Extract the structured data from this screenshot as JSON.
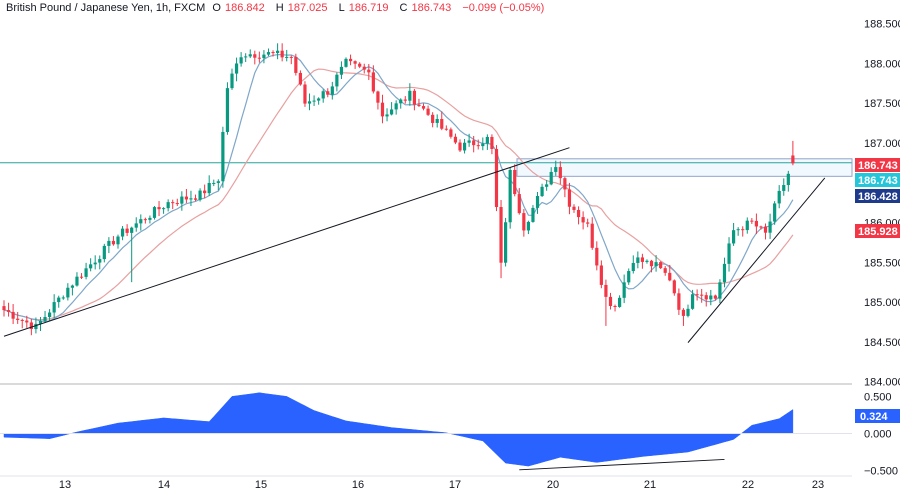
{
  "header": {
    "symbol": "British Pound / Japanese Yen, 1h, FXCM",
    "open_label": "O",
    "open": "186.842",
    "high_label": "H",
    "high": "187.025",
    "low_label": "L",
    "low": "186.719",
    "close_label": "C",
    "close": "186.743",
    "change": "−0.099 (−0.05%)"
  },
  "colors": {
    "up": "#089981",
    "down": "#F23645",
    "ma_fast": "#7FA7C9",
    "ma_slow": "#E8A0A0",
    "level": "#26A69A",
    "oscillator": "#2962FF",
    "axis_line": "#B2B5BE"
  },
  "chart_data": [
    {
      "type": "candlestick",
      "x_ticks": [
        "13",
        "14",
        "15",
        "16",
        "17",
        "20",
        "21",
        "22",
        "23"
      ],
      "y_ticks": [
        "188.500",
        "188.000",
        "187.500",
        "187.000",
        "186.000",
        "185.500",
        "185.000",
        "184.500",
        "184.000"
      ],
      "ylim": [
        183.97,
        188.62
      ],
      "price_badges": [
        {
          "value": "186.743",
          "color": "#F23645"
        },
        {
          "value": "186.743",
          "color": "#26C6DA"
        },
        {
          "value": "186.428",
          "color": "#1E3A8A"
        },
        {
          "value": "185.928",
          "color": "#F23645"
        }
      ],
      "horizontal_levels": [
        186.75,
        186.58
      ],
      "trendlines": [
        {
          "from": {
            "bar": 0,
            "price": 184.57
          },
          "to": {
            "bar": 124,
            "price": 186.94
          }
        },
        {
          "from": {
            "bar": 150,
            "price": 184.49
          },
          "to": {
            "bar": 180,
            "price": 186.56
          }
        }
      ],
      "anchors": [
        {
          "bar": 0,
          "price": 184.9
        },
        {
          "bar": 7,
          "price": 184.68
        },
        {
          "bar": 14,
          "price": 185.18
        },
        {
          "bar": 25,
          "price": 185.83
        },
        {
          "bar": 36,
          "price": 186.25
        },
        {
          "bar": 43,
          "price": 186.35
        },
        {
          "bar": 47,
          "price": 186.55
        },
        {
          "bar": 49,
          "price": 187.7
        },
        {
          "bar": 52,
          "price": 188.12
        },
        {
          "bar": 58,
          "price": 188.12
        },
        {
          "bar": 63,
          "price": 188.08
        },
        {
          "bar": 66,
          "price": 187.5
        },
        {
          "bar": 71,
          "price": 187.65
        },
        {
          "bar": 75,
          "price": 188.0
        },
        {
          "bar": 80,
          "price": 187.88
        },
        {
          "bar": 83,
          "price": 187.35
        },
        {
          "bar": 89,
          "price": 187.6
        },
        {
          "bar": 94,
          "price": 187.3
        },
        {
          "bar": 100,
          "price": 186.95
        },
        {
          "bar": 106,
          "price": 187.05
        },
        {
          "bar": 111,
          "price": 186.62
        },
        {
          "bar": 107,
          "price": 186.9
        },
        {
          "bar": 109,
          "price": 185.45
        },
        {
          "bar": 114,
          "price": 185.95
        },
        {
          "bar": 121,
          "price": 186.75
        },
        {
          "bar": 124,
          "price": 186.25
        },
        {
          "bar": 128,
          "price": 185.95
        },
        {
          "bar": 132,
          "price": 185.05
        },
        {
          "bar": 134,
          "price": 184.95
        },
        {
          "bar": 138,
          "price": 185.55
        },
        {
          "bar": 143,
          "price": 185.45
        },
        {
          "bar": 146,
          "price": 185.3
        },
        {
          "bar": 149,
          "price": 184.78
        },
        {
          "bar": 151,
          "price": 185.15
        },
        {
          "bar": 156,
          "price": 185.05
        },
        {
          "bar": 160,
          "price": 185.9
        },
        {
          "bar": 164,
          "price": 186.0
        },
        {
          "bar": 167,
          "price": 185.85
        },
        {
          "bar": 170,
          "price": 186.35
        },
        {
          "bar": 173,
          "price": 186.743
        }
      ],
      "moving_averages": [
        {
          "period": 8
        },
        {
          "period": 21
        }
      ]
    },
    {
      "type": "area",
      "y_ticks": [
        "0.500",
        "0.000",
        "−0.500"
      ],
      "ylim": [
        -0.56,
        0.56
      ],
      "current_value": "0.324",
      "anchors": [
        {
          "bar": 0,
          "value": -0.05
        },
        {
          "bar": 10,
          "value": -0.07
        },
        {
          "bar": 16,
          "value": 0.02
        },
        {
          "bar": 25,
          "value": 0.14
        },
        {
          "bar": 35,
          "value": 0.21
        },
        {
          "bar": 45,
          "value": 0.16
        },
        {
          "bar": 50,
          "value": 0.5
        },
        {
          "bar": 56,
          "value": 0.55
        },
        {
          "bar": 62,
          "value": 0.5
        },
        {
          "bar": 68,
          "value": 0.31
        },
        {
          "bar": 75,
          "value": 0.17
        },
        {
          "bar": 85,
          "value": 0.08
        },
        {
          "bar": 97,
          "value": 0.01
        },
        {
          "bar": 105,
          "value": -0.1
        },
        {
          "bar": 110,
          "value": -0.4
        },
        {
          "bar": 115,
          "value": -0.44
        },
        {
          "bar": 122,
          "value": -0.32
        },
        {
          "bar": 130,
          "value": -0.39
        },
        {
          "bar": 140,
          "value": -0.31
        },
        {
          "bar": 150,
          "value": -0.25
        },
        {
          "bar": 160,
          "value": -0.08
        },
        {
          "bar": 164,
          "value": 0.11
        },
        {
          "bar": 170,
          "value": 0.2
        },
        {
          "bar": 173,
          "value": 0.324
        }
      ],
      "divergence_line": {
        "from": {
          "bar": 113,
          "value": -0.49
        },
        "to": {
          "bar": 158,
          "value": -0.35
        }
      }
    }
  ]
}
